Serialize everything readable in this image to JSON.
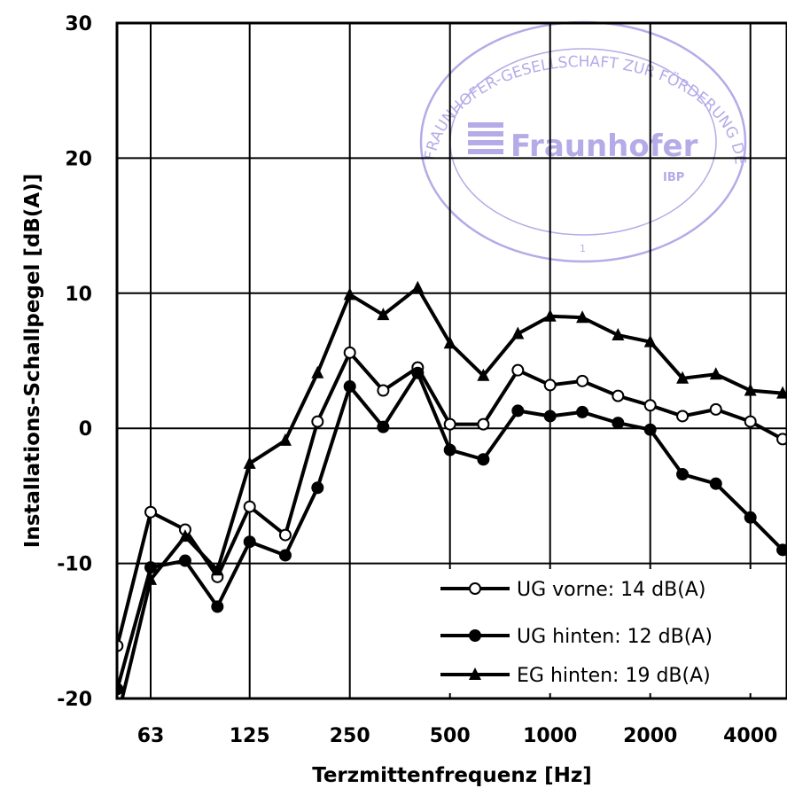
{
  "chart_data": {
    "type": "line",
    "title": "",
    "xlabel": "Terzmittenfrequenz [Hz]",
    "ylabel": "Installations-Schallpegel [dB(A)]",
    "ylim": [
      -20,
      30
    ],
    "yticks": [
      -20,
      -10,
      0,
      10,
      20,
      30
    ],
    "ytick_labels": [
      "-20",
      "-10",
      "0",
      "10",
      "20",
      "30"
    ],
    "x_scale": "log2 (third-octave bands)",
    "x": [
      50,
      63,
      80,
      100,
      125,
      160,
      200,
      250,
      315,
      400,
      500,
      630,
      800,
      1000,
      1250,
      1600,
      2000,
      2500,
      3150,
      4000,
      5000
    ],
    "xticks": [
      63,
      125,
      250,
      500,
      1000,
      2000,
      4000
    ],
    "xtick_labels": [
      "63",
      "125",
      "250",
      "500",
      "1000",
      "2000",
      "4000"
    ],
    "grid": true,
    "legend_position": "bottom-right",
    "series": [
      {
        "name": "UG vorne: 14 dB(A)",
        "marker": "open-circle",
        "values": [
          -16.1,
          -6.2,
          -7.5,
          -11.0,
          -5.8,
          -7.9,
          0.5,
          5.6,
          2.8,
          4.5,
          0.3,
          0.3,
          4.3,
          3.2,
          3.5,
          2.4,
          1.7,
          0.9,
          1.4,
          0.5,
          -0.8
        ]
      },
      {
        "name": "UG hinten: 12 dB(A)",
        "marker": "filled-circle",
        "values": [
          -19.3,
          -10.3,
          -9.8,
          -13.2,
          -8.4,
          -9.4,
          -4.4,
          3.1,
          0.1,
          4.1,
          -1.6,
          -2.3,
          1.3,
          0.9,
          1.2,
          0.4,
          -0.1,
          -3.4,
          -4.1,
          -6.6,
          -9.0
        ]
      },
      {
        "name": "EG hinten: 19 dB(A)",
        "marker": "filled-triangle",
        "values": [
          -21.5,
          -11.2,
          -8.0,
          -10.5,
          -2.6,
          -0.9,
          4.1,
          9.9,
          8.4,
          10.4,
          6.3,
          3.9,
          7.0,
          8.3,
          8.2,
          6.9,
          6.4,
          3.7,
          4.0,
          2.8,
          2.6
        ]
      }
    ]
  },
  "stamp": {
    "org_text": "FRAUNHOFER-GESELLSCHAFT ZUR FÖRDERUNG DER ANGEWANDTEN FORSCHUNG E.V.",
    "logo": "Fraunhofer",
    "institute": "IBP",
    "number": "1",
    "color": "#9b8fe0"
  }
}
